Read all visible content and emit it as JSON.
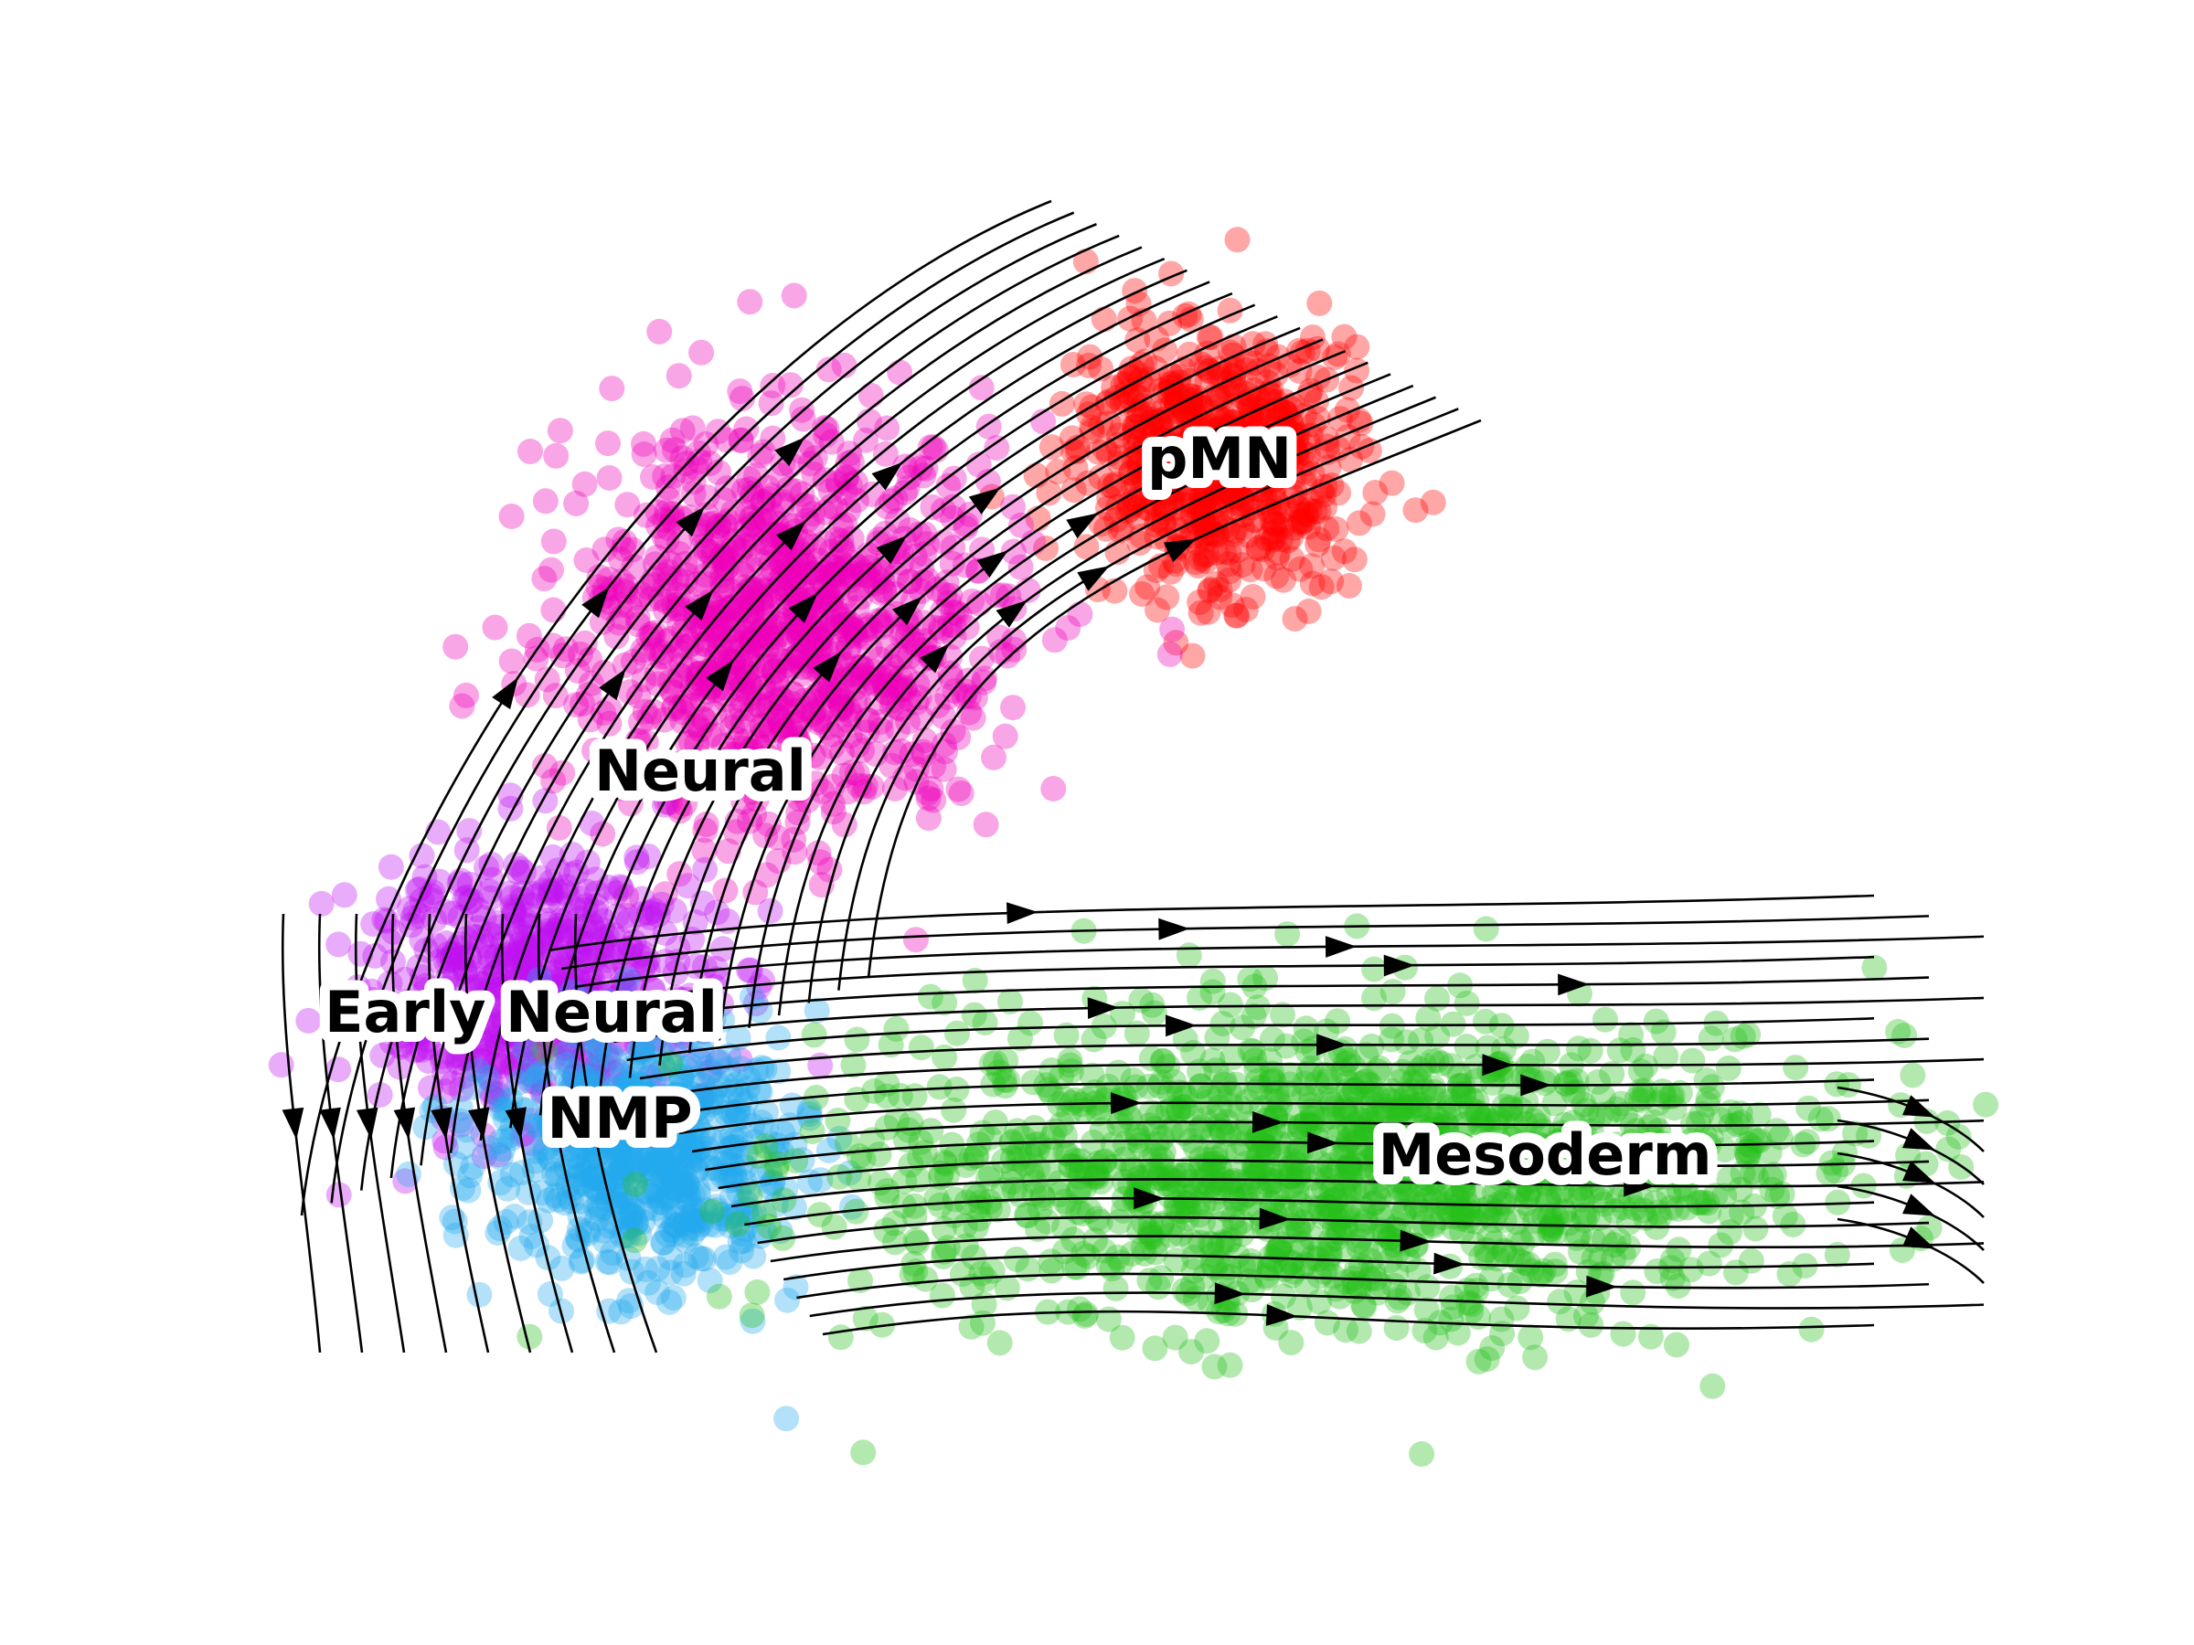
{
  "chart_data": {
    "type": "scatter",
    "title": "",
    "xlabel": "",
    "ylabel": "",
    "axes_visible": false,
    "grid": false,
    "legend": "none (clusters labelled on plot)",
    "overlay": "velocity streamlines with arrowheads",
    "point_alpha": 0.35,
    "clusters": [
      {
        "name": "pMN",
        "color": "#ff0000",
        "center": [
          1334,
          506
        ],
        "spread": [
          118,
          115
        ],
        "n": 700,
        "label_pos": [
          1334,
          506
        ]
      },
      {
        "name": "Neural",
        "color": "#ef00b9",
        "center": [
          860,
          680
        ],
        "spread": [
          190,
          170
        ],
        "n": 1100,
        "label_pos": [
          766,
          848
        ]
      },
      {
        "name": "Early Neural",
        "color": "#c010f0",
        "center": [
          590,
          1080
        ],
        "spread": [
          150,
          115
        ],
        "n": 650,
        "label_pos": [
          570,
          1112
        ]
      },
      {
        "name": "NMP",
        "color": "#22a8ee",
        "center": [
          700,
          1260
        ],
        "spread": [
          135,
          110
        ],
        "n": 650,
        "label_pos": [
          678,
          1228
        ]
      },
      {
        "name": "Mesoderm",
        "color": "#24c01a",
        "center": [
          1460,
          1280
        ],
        "spread": [
          420,
          140
        ],
        "n": 1500,
        "label_pos": [
          1690,
          1268
        ]
      }
    ]
  },
  "labels": {
    "pmn": "pMN",
    "neural": "Neural",
    "early_neural": "Early Neural",
    "nmp": "NMP",
    "mesoderm": "Mesoderm"
  }
}
